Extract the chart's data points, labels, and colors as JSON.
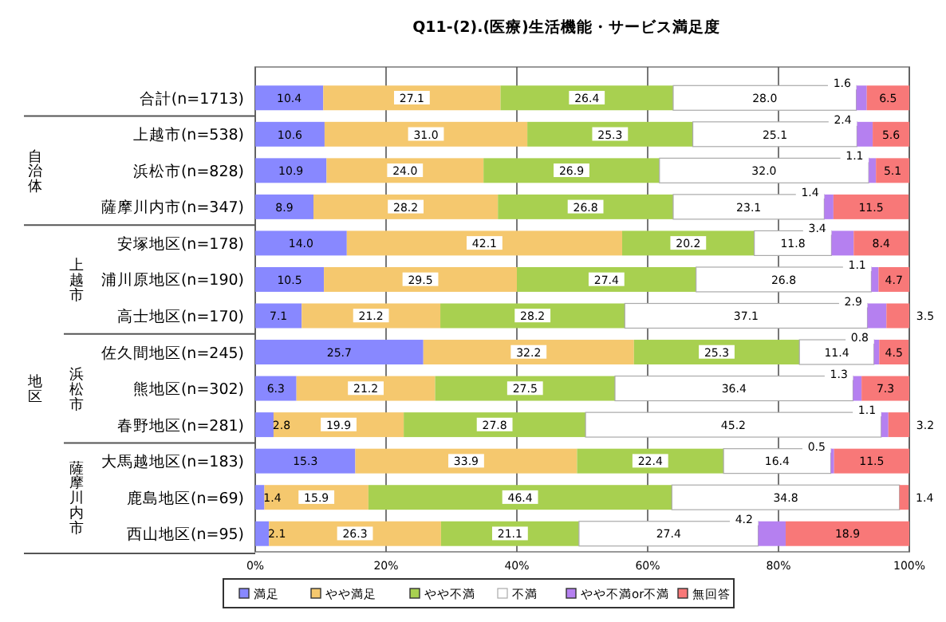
{
  "chart_data": {
    "type": "bar",
    "orientation": "horizontal",
    "stacked": true,
    "title": "Q11-(2).(医療)生活機能・サービス満足度",
    "categories": [
      "合計(n=1713)",
      "上越市(n=538)",
      "浜松市(n=828)",
      "薩摩川内市(n=347)",
      "安塚地区(n=178)",
      "浦川原地区(n=190)",
      "高士地区(n=170)",
      "佐久間地区(n=245)",
      "熊地区(n=302)",
      "春野地区(n=281)",
      "大馬越地区(n=183)",
      "鹿島地区(n=69)",
      "西山地区(n=95)"
    ],
    "series": [
      {
        "name": "満足",
        "color": "#8888ff",
        "values": [
          10.4,
          10.6,
          10.9,
          8.9,
          14.0,
          10.5,
          7.1,
          25.7,
          6.3,
          2.8,
          15.3,
          1.4,
          2.1
        ],
        "value_labels": [
          "10.4",
          "10.6",
          "10.9",
          "8.9",
          "14.0",
          "10.5",
          "7.1",
          "25.7",
          "6.3",
          "2.8",
          "15.3",
          "1.4",
          "2.1"
        ]
      },
      {
        "name": "やや満足",
        "color": "#f5c86e",
        "values": [
          27.1,
          31.0,
          24.0,
          28.2,
          42.1,
          29.5,
          21.2,
          32.2,
          21.2,
          19.9,
          33.9,
          15.9,
          26.3
        ],
        "value_labels": [
          "27.1",
          "31.0",
          "24.0",
          "28.2",
          "42.1",
          "29.5",
          "21.2",
          "32.2",
          "21.2",
          "19.9",
          "33.9",
          "15.9",
          "26.3"
        ]
      },
      {
        "name": "やや不満",
        "color": "#a8d050",
        "values": [
          26.4,
          25.3,
          26.9,
          26.8,
          20.2,
          27.4,
          28.2,
          25.3,
          27.5,
          27.8,
          22.4,
          46.4,
          21.1
        ],
        "value_labels": [
          "26.4",
          "25.3",
          "26.9",
          "26.8",
          "20.2",
          "27.4",
          "28.2",
          "25.3",
          "27.5",
          "27.8",
          "22.4",
          "46.4",
          "21.1"
        ]
      },
      {
        "name": "不満",
        "color": "#ffffff",
        "values": [
          28.0,
          25.1,
          32.0,
          23.1,
          11.8,
          26.8,
          37.1,
          11.4,
          36.4,
          45.2,
          16.4,
          34.8,
          27.4
        ],
        "value_labels": [
          "28.0",
          "25.1",
          "32.0",
          "23.1",
          "11.8",
          "26.8",
          "37.1",
          "11.4",
          "36.4",
          "45.2",
          "16.4",
          "34.8",
          "27.4"
        ]
      },
      {
        "name": "やや不満or不満",
        "color": "#b580f0",
        "values": [
          1.6,
          2.4,
          1.1,
          1.4,
          3.4,
          1.1,
          2.9,
          0.8,
          1.3,
          1.1,
          0.5,
          null,
          4.2
        ],
        "value_labels": [
          "1.6",
          "2.4",
          "1.1",
          "1.4",
          "3.4",
          "1.1",
          "2.9",
          "0.8",
          "1.3",
          "1.1",
          "0.5",
          null,
          "4.2"
        ]
      },
      {
        "name": "無回答",
        "color": "#f87878",
        "values": [
          6.5,
          5.6,
          5.1,
          11.5,
          8.4,
          4.7,
          3.5,
          4.5,
          7.3,
          3.2,
          11.5,
          1.4,
          18.9
        ],
        "value_labels": [
          "6.5",
          "5.6",
          "5.1",
          "11.5",
          "8.4",
          "4.7",
          "3.5",
          "4.5",
          "7.3",
          "3.2",
          "11.5",
          "1.4",
          "18.9"
        ]
      }
    ],
    "xlim": [
      0,
      100
    ],
    "xticks": [
      {
        "value": 0,
        "label": "0%"
      },
      {
        "value": 20,
        "label": "20%"
      },
      {
        "value": 40,
        "label": "40%"
      },
      {
        "value": 60,
        "label": "60%"
      },
      {
        "value": 80,
        "label": "80%"
      },
      {
        "value": 100,
        "label": "100%"
      }
    ],
    "grid": "x",
    "legend": "bottom",
    "annotations": [
      "自治体",
      "地区",
      "上越市",
      "浜松市",
      "薩摩川内市"
    ]
  }
}
